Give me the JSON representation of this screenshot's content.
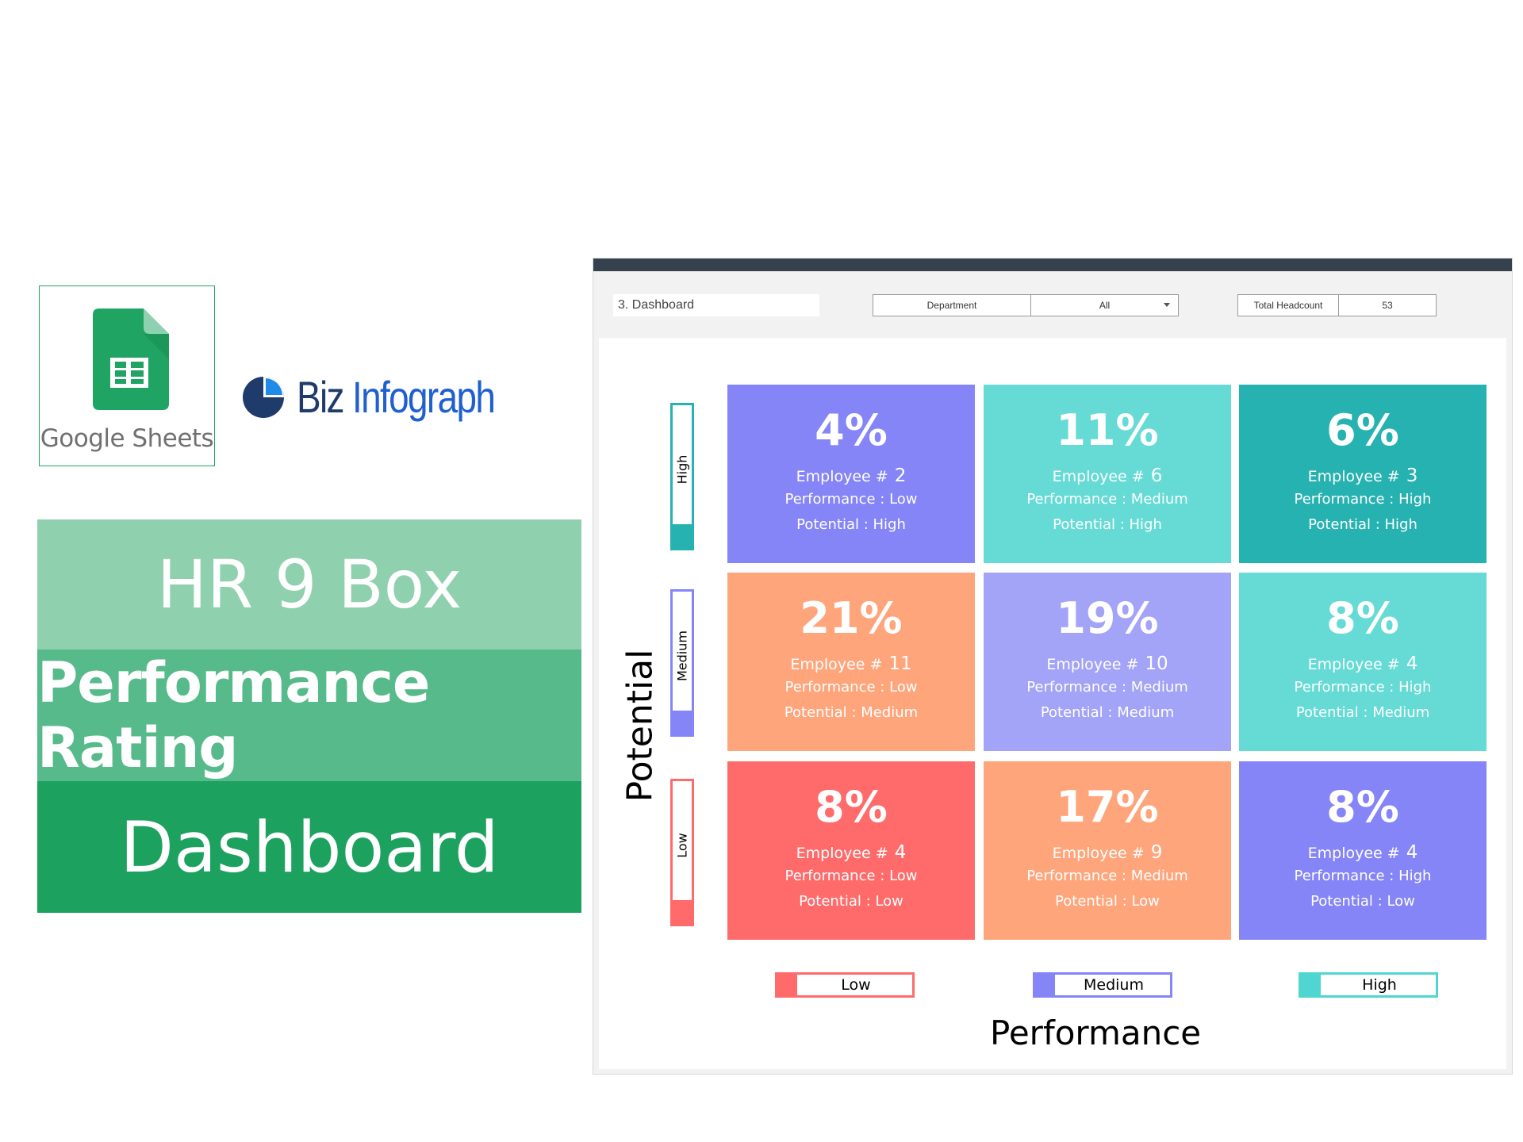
{
  "branding": {
    "google_sheets_label": "Google Sheets",
    "biz_part1": "Biz",
    "biz_part2": "Infograph"
  },
  "title": {
    "line1": "HR 9 Box",
    "line2": "Performance Rating",
    "line3": "Dashboard"
  },
  "toolbar": {
    "sheet_name": "3. Dashboard",
    "department_label": "Department",
    "department_value": "All",
    "headcount_label": "Total Headcount",
    "headcount_value": "53"
  },
  "axes": {
    "potential_title": "Potential",
    "performance_title": "Performance",
    "potential_levels": [
      "High",
      "Medium",
      "Low"
    ],
    "performance_levels": [
      "Low",
      "Medium",
      "High"
    ]
  },
  "colors": {
    "dark_bar": "#36414e",
    "low_red": "#ff6b6b",
    "orange": "#ffa57b",
    "blue_violet": "#8585f7",
    "lavender": "#a3a3f7",
    "turquoise": "#66dbd6",
    "teal": "#26b2b0"
  },
  "labels": {
    "employee_prefix": "Employee #",
    "performance_prefix": "Performance : ",
    "potential_prefix": "Potential : "
  },
  "boxes": [
    {
      "pct": "4%",
      "count": "2",
      "performance": "Low",
      "potential": "High",
      "color": "#8585f7"
    },
    {
      "pct": "11%",
      "count": "6",
      "performance": "Medium",
      "potential": "High",
      "color": "#66dbd6"
    },
    {
      "pct": "6%",
      "count": "3",
      "performance": "High",
      "potential": "High",
      "color": "#26b2b0"
    },
    {
      "pct": "21%",
      "count": "11",
      "performance": "Low",
      "potential": "Medium",
      "color": "#ffa57b"
    },
    {
      "pct": "19%",
      "count": "10",
      "performance": "Medium",
      "potential": "Medium",
      "color": "#a3a3f7"
    },
    {
      "pct": "8%",
      "count": "4",
      "performance": "High",
      "potential": "Medium",
      "color": "#66dbd6"
    },
    {
      "pct": "8%",
      "count": "4",
      "performance": "Low",
      "potential": "Low",
      "color": "#ff6b6b"
    },
    {
      "pct": "17%",
      "count": "9",
      "performance": "Medium",
      "potential": "Low",
      "color": "#ffa57b"
    },
    {
      "pct": "8%",
      "count": "4",
      "performance": "High",
      "potential": "Low",
      "color": "#8585f7"
    }
  ]
}
